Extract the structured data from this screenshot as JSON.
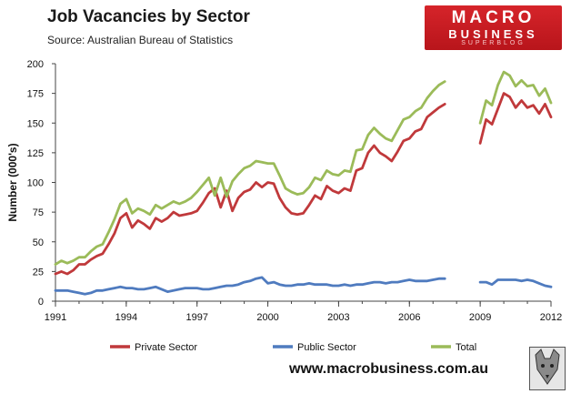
{
  "header": {
    "title": "Job Vacancies by Sector",
    "source": "Source: Australian Bureau of Statistics"
  },
  "logo": {
    "line1": "MACRO",
    "line2": "BUSINESS",
    "line3": "SUPERBLOG"
  },
  "footer": {
    "url": "www.macrobusiness.com.au"
  },
  "colors": {
    "private": "#c0393b",
    "public": "#4f7bbf",
    "total": "#9bbb59"
  },
  "chart_data": {
    "type": "line",
    "title": "Job Vacancies by Sector",
    "xlabel": "",
    "ylabel": "Number (000's)",
    "ylim": [
      0,
      200
    ],
    "xlim": [
      1991,
      2012
    ],
    "yticks": [
      0,
      25,
      50,
      75,
      100,
      125,
      150,
      175,
      200
    ],
    "xticks": [
      1991,
      1994,
      1997,
      2000,
      2003,
      2006,
      2009,
      2012
    ],
    "grid": false,
    "legend_position": "bottom",
    "segments": [
      {
        "x": [
          1991.0,
          1991.25,
          1991.5,
          1991.75,
          1992.0,
          1992.25,
          1992.5,
          1992.75,
          1993.0,
          1993.25,
          1993.5,
          1993.75,
          1994.0,
          1994.25,
          1994.5,
          1994.75,
          1995.0,
          1995.25,
          1995.5,
          1995.75,
          1996.0,
          1996.25,
          1996.5,
          1996.75,
          1997.0,
          1997.25,
          1997.5,
          1997.75,
          1998.0,
          1998.25,
          1998.5,
          1998.75,
          1999.0,
          1999.25,
          1999.5,
          1999.75,
          2000.0,
          2000.25,
          2000.5,
          2000.75,
          2001.0,
          2001.25,
          2001.5,
          2001.75,
          2002.0,
          2002.25,
          2002.5,
          2002.75,
          2003.0,
          2003.25,
          2003.5,
          2003.75,
          2004.0,
          2004.25,
          2004.5,
          2004.75,
          2005.0,
          2005.25,
          2005.5,
          2005.75,
          2006.0,
          2006.25,
          2006.5,
          2006.75,
          2007.0,
          2007.25,
          2007.5
        ],
        "series": [
          {
            "name": "Private Sector",
            "values": [
              23,
              25,
              23,
              26,
              31,
              31,
              35,
              38,
              40,
              48,
              57,
              70,
              74,
              62,
              68,
              65,
              61,
              70,
              67,
              70,
              75,
              72,
              73,
              74,
              76,
              83,
              91,
              95,
              79,
              93,
              76,
              87,
              92,
              94,
              100,
              96,
              100,
              99,
              87,
              79,
              74,
              73,
              74,
              81,
              89,
              86,
              97,
              93,
              91,
              95,
              93,
              110,
              112,
              125,
              131,
              125,
              122,
              118,
              126,
              135,
              137,
              143,
              145,
              155,
              159,
              163,
              166
            ]
          },
          {
            "name": "Public Sector",
            "values": [
              9,
              9,
              9,
              8,
              7,
              6,
              7,
              9,
              9,
              10,
              11,
              12,
              11,
              11,
              10,
              10,
              11,
              12,
              10,
              8,
              9,
              10,
              11,
              11,
              11,
              10,
              10,
              11,
              12,
              13,
              13,
              14,
              16,
              17,
              19,
              20,
              15,
              16,
              14,
              13,
              13,
              14,
              14,
              15,
              14,
              14,
              14,
              13,
              13,
              14,
              13,
              14,
              14,
              15,
              16,
              16,
              15,
              16,
              16,
              17,
              18,
              17,
              17,
              17,
              18,
              19,
              19
            ]
          },
          {
            "name": "Total",
            "values": [
              31,
              34,
              32,
              34,
              37,
              37,
              42,
              46,
              48,
              58,
              69,
              82,
              86,
              74,
              78,
              76,
              73,
              81,
              78,
              81,
              84,
              82,
              84,
              87,
              92,
              98,
              104,
              89,
              104,
              88,
              101,
              107,
              112,
              114,
              118,
              117,
              116,
              116,
              106,
              95,
              92,
              90,
              91,
              96,
              104,
              102,
              110,
              107,
              106,
              110,
              109,
              127,
              128,
              140,
              146,
              141,
              137,
              135,
              144,
              153,
              155,
              160,
              163,
              171,
              177,
              182,
              185
            ]
          }
        ]
      },
      {
        "x": [
          2009.0,
          2009.25,
          2009.5,
          2009.75,
          2010.0,
          2010.25,
          2010.5,
          2010.75,
          2011.0,
          2011.25,
          2011.5,
          2011.75,
          2012.0
        ],
        "series": [
          {
            "name": "Private Sector",
            "values": [
              133,
              153,
              149,
              162,
              175,
              172,
              163,
              169,
              163,
              165,
              158,
              166,
              155
            ]
          },
          {
            "name": "Public Sector",
            "values": [
              16,
              16,
              14,
              18,
              18,
              18,
              18,
              17,
              18,
              17,
              15,
              13,
              12
            ]
          },
          {
            "name": "Total",
            "values": [
              150,
              169,
              165,
              182,
              193,
              190,
              181,
              186,
              181,
              182,
              173,
              179,
              167
            ]
          }
        ]
      }
    ],
    "legend": [
      "Private Sector",
      "Public Sector",
      "Total"
    ]
  }
}
